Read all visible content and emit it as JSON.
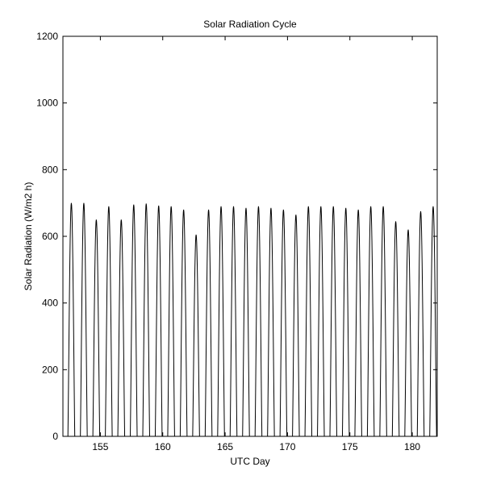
{
  "chart_data": {
    "type": "line",
    "title": "Solar Radiation Cycle",
    "xlabel": "UTC Day",
    "ylabel": "Solar Radiation (W/m2 h)",
    "xlim": [
      152,
      182
    ],
    "ylim": [
      0,
      1200
    ],
    "xticks": [
      155,
      160,
      165,
      170,
      175,
      180
    ],
    "yticks": [
      0,
      200,
      400,
      600,
      800,
      1000,
      1200
    ],
    "grid": false,
    "line_color": "#000000",
    "series": [
      {
        "daily_peaks": [
          {
            "day": 152,
            "peak": 700
          },
          {
            "day": 153,
            "peak": 700
          },
          {
            "day": 154,
            "peak": 650
          },
          {
            "day": 155,
            "peak": 690
          },
          {
            "day": 156,
            "peak": 650
          },
          {
            "day": 157,
            "peak": 695
          },
          {
            "day": 158,
            "peak": 698
          },
          {
            "day": 159,
            "peak": 692
          },
          {
            "day": 160,
            "peak": 690
          },
          {
            "day": 161,
            "peak": 680
          },
          {
            "day": 162,
            "peak": 605
          },
          {
            "day": 163,
            "peak": 680
          },
          {
            "day": 164,
            "peak": 690
          },
          {
            "day": 165,
            "peak": 690
          },
          {
            "day": 166,
            "peak": 685
          },
          {
            "day": 167,
            "peak": 690
          },
          {
            "day": 168,
            "peak": 685
          },
          {
            "day": 169,
            "peak": 680
          },
          {
            "day": 170,
            "peak": 665
          },
          {
            "day": 171,
            "peak": 690
          },
          {
            "day": 172,
            "peak": 690
          },
          {
            "day": 173,
            "peak": 690
          },
          {
            "day": 174,
            "peak": 685
          },
          {
            "day": 175,
            "peak": 680
          },
          {
            "day": 176,
            "peak": 690
          },
          {
            "day": 177,
            "peak": 690
          },
          {
            "day": 178,
            "peak": 645
          },
          {
            "day": 179,
            "peak": 620
          },
          {
            "day": 180,
            "peak": 675
          },
          {
            "day": 181,
            "peak": 690
          }
        ]
      }
    ]
  }
}
